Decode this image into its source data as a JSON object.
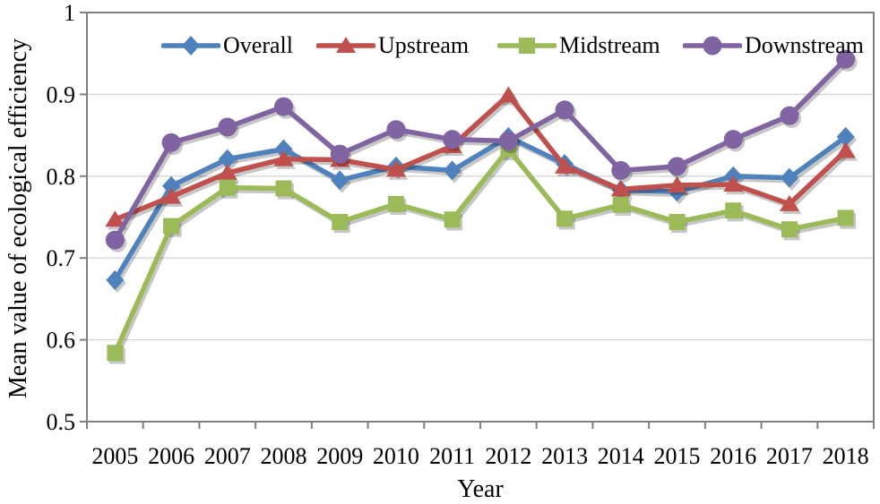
{
  "figure": {
    "background": "#ffffff"
  },
  "chart_data": {
    "type": "line",
    "title": "",
    "xlabel": "Year",
    "ylabel": "Mean value of ecological efficiency",
    "x": [
      2005,
      2006,
      2007,
      2008,
      2009,
      2010,
      2011,
      2012,
      2013,
      2014,
      2015,
      2016,
      2017,
      2018
    ],
    "ylim": [
      0.5,
      1.0
    ],
    "yticks": [
      0.5,
      0.6,
      0.7,
      0.8,
      0.9,
      1.0
    ],
    "ytick_labels": [
      "0.5",
      "0.6",
      "0.7",
      "0.8",
      "0.9",
      "1"
    ],
    "grid": "horizontal-only",
    "legend_position": "top-inside-horizontal",
    "axis_color": "#7f7f7f",
    "gridline_color": "#d6d6d6",
    "shadow_color": "rgba(0,0,0,0.22)",
    "series": [
      {
        "name": "Overall",
        "color": "#4f81bd",
        "marker": "diamond",
        "values": [
          0.673,
          0.788,
          0.821,
          0.833,
          0.795,
          0.812,
          0.807,
          0.848,
          0.815,
          0.783,
          0.781,
          0.8,
          0.798,
          0.848
        ]
      },
      {
        "name": "Upstream",
        "color": "#c0504d",
        "marker": "triangle-up",
        "values": [
          0.747,
          0.775,
          0.804,
          0.821,
          0.82,
          0.808,
          0.837,
          0.899,
          0.812,
          0.784,
          0.789,
          0.79,
          0.766,
          0.831
        ]
      },
      {
        "name": "Midstream",
        "color": "#9bbb59",
        "marker": "square",
        "values": [
          0.584,
          0.739,
          0.786,
          0.785,
          0.744,
          0.766,
          0.747,
          0.833,
          0.748,
          0.765,
          0.744,
          0.758,
          0.735,
          0.749
        ]
      },
      {
        "name": "Downstream",
        "color": "#8064a2",
        "marker": "circle",
        "values": [
          0.722,
          0.841,
          0.86,
          0.885,
          0.827,
          0.857,
          0.845,
          0.843,
          0.881,
          0.807,
          0.812,
          0.845,
          0.874,
          0.943
        ]
      }
    ]
  }
}
